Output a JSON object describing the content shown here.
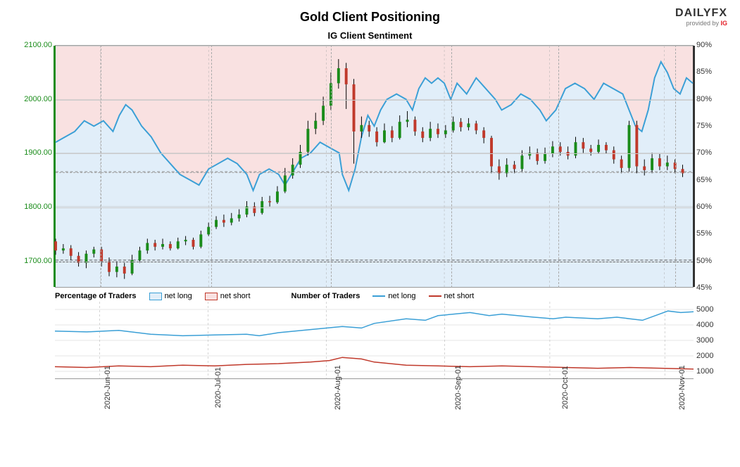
{
  "title": "Gold Client Positioning",
  "subtitle": "IG Client Sentiment",
  "logo": {
    "main": "DAILYFX",
    "sub_prefix": "provided by ",
    "sub_brand": "IG"
  },
  "main_chart": {
    "type": "candlestick-with-line",
    "background_upper": "#f9e1e1",
    "background_lower": "#e1eef9",
    "left_axis": {
      "color": "#1a8c1a",
      "min": 1650,
      "max": 2100,
      "ticks": [
        1700.0,
        1800.0,
        1900.0,
        2000.0,
        2100.0
      ],
      "labels": [
        "1700.00",
        "1800.00",
        "1900.00",
        "2000.00",
        "2100.00"
      ]
    },
    "right_axis": {
      "color": "#333",
      "min": 45,
      "max": 90,
      "ticks": [
        45,
        50,
        55,
        60,
        65,
        70,
        75,
        80,
        85,
        90
      ],
      "labels": [
        "45%",
        "50%",
        "55%",
        "60%",
        "65%",
        "70%",
        "75%",
        "80%",
        "85%",
        "90%"
      ]
    },
    "ref_line_left": 1700.0,
    "ref_line_right_50": 50,
    "ref_line_right_cur": 1865,
    "x_dates": [
      "2020-Jun-01",
      "2020-Jul-01",
      "2020-Aug-01",
      "2020-Sep-01",
      "2020-Oct-01",
      "2020-Nov-01"
    ],
    "x_positions": [
      0.07,
      0.24,
      0.425,
      0.61,
      0.775,
      0.955
    ],
    "sentiment_color": "#3a9fd6",
    "sentiment": [
      [
        0.0,
        72
      ],
      [
        0.015,
        73
      ],
      [
        0.03,
        74
      ],
      [
        0.045,
        76
      ],
      [
        0.06,
        75
      ],
      [
        0.075,
        76
      ],
      [
        0.09,
        74
      ],
      [
        0.1,
        77
      ],
      [
        0.11,
        79
      ],
      [
        0.12,
        78
      ],
      [
        0.135,
        75
      ],
      [
        0.15,
        73
      ],
      [
        0.165,
        70
      ],
      [
        0.18,
        68
      ],
      [
        0.195,
        66
      ],
      [
        0.21,
        65
      ],
      [
        0.225,
        64
      ],
      [
        0.24,
        67
      ],
      [
        0.255,
        68
      ],
      [
        0.27,
        69
      ],
      [
        0.285,
        68
      ],
      [
        0.3,
        66
      ],
      [
        0.31,
        63
      ],
      [
        0.32,
        66
      ],
      [
        0.335,
        67
      ],
      [
        0.35,
        66
      ],
      [
        0.36,
        64
      ],
      [
        0.37,
        66
      ],
      [
        0.385,
        69
      ],
      [
        0.4,
        70
      ],
      [
        0.415,
        72
      ],
      [
        0.43,
        71
      ],
      [
        0.445,
        70
      ],
      [
        0.45,
        66
      ],
      [
        0.46,
        63
      ],
      [
        0.47,
        67
      ],
      [
        0.48,
        73
      ],
      [
        0.49,
        77
      ],
      [
        0.5,
        75
      ],
      [
        0.51,
        78
      ],
      [
        0.52,
        80
      ],
      [
        0.535,
        81
      ],
      [
        0.55,
        80
      ],
      [
        0.56,
        78
      ],
      [
        0.57,
        82
      ],
      [
        0.58,
        84
      ],
      [
        0.59,
        83
      ],
      [
        0.6,
        84
      ],
      [
        0.61,
        83
      ],
      [
        0.62,
        80
      ],
      [
        0.63,
        83
      ],
      [
        0.645,
        81
      ],
      [
        0.66,
        84
      ],
      [
        0.675,
        82
      ],
      [
        0.69,
        80
      ],
      [
        0.7,
        78
      ],
      [
        0.715,
        79
      ],
      [
        0.73,
        81
      ],
      [
        0.745,
        80
      ],
      [
        0.76,
        78
      ],
      [
        0.77,
        76
      ],
      [
        0.785,
        78
      ],
      [
        0.8,
        82
      ],
      [
        0.815,
        83
      ],
      [
        0.83,
        82
      ],
      [
        0.845,
        80
      ],
      [
        0.86,
        83
      ],
      [
        0.875,
        82
      ],
      [
        0.89,
        81
      ],
      [
        0.9,
        78
      ],
      [
        0.91,
        75
      ],
      [
        0.92,
        74
      ],
      [
        0.93,
        78
      ],
      [
        0.94,
        84
      ],
      [
        0.95,
        87
      ],
      [
        0.96,
        85
      ],
      [
        0.97,
        82
      ],
      [
        0.98,
        81
      ],
      [
        0.99,
        84
      ],
      [
        1.0,
        83
      ]
    ],
    "candle_up_color": "#1a8c1a",
    "candle_down_color": "#c0392b",
    "candle_width": 4,
    "candles": [
      [
        0.0,
        1735,
        1718,
        1740,
        1710
      ],
      [
        0.012,
        1718,
        1722,
        1730,
        1712
      ],
      [
        0.024,
        1722,
        1708,
        1728,
        1700
      ],
      [
        0.036,
        1708,
        1695,
        1715,
        1688
      ],
      [
        0.048,
        1695,
        1712,
        1718,
        1685
      ],
      [
        0.06,
        1712,
        1720,
        1725,
        1705
      ],
      [
        0.072,
        1720,
        1698,
        1725,
        1688
      ],
      [
        0.084,
        1698,
        1678,
        1705,
        1670
      ],
      [
        0.096,
        1678,
        1688,
        1698,
        1668
      ],
      [
        0.108,
        1688,
        1675,
        1695,
        1665
      ],
      [
        0.12,
        1675,
        1700,
        1710,
        1672
      ],
      [
        0.132,
        1700,
        1718,
        1725,
        1695
      ],
      [
        0.144,
        1718,
        1732,
        1740,
        1712
      ],
      [
        0.156,
        1732,
        1725,
        1738,
        1718
      ],
      [
        0.168,
        1725,
        1730,
        1740,
        1720
      ],
      [
        0.18,
        1730,
        1722,
        1735,
        1718
      ],
      [
        0.192,
        1722,
        1735,
        1742,
        1720
      ],
      [
        0.204,
        1735,
        1738,
        1745,
        1728
      ],
      [
        0.216,
        1738,
        1725,
        1742,
        1720
      ],
      [
        0.228,
        1725,
        1748,
        1755,
        1722
      ],
      [
        0.24,
        1748,
        1762,
        1770,
        1745
      ],
      [
        0.252,
        1762,
        1775,
        1782,
        1758
      ],
      [
        0.264,
        1775,
        1770,
        1785,
        1762
      ],
      [
        0.276,
        1770,
        1778,
        1788,
        1765
      ],
      [
        0.288,
        1778,
        1785,
        1795,
        1772
      ],
      [
        0.3,
        1785,
        1800,
        1810,
        1780
      ],
      [
        0.312,
        1800,
        1788,
        1808,
        1782
      ],
      [
        0.324,
        1788,
        1810,
        1818,
        1785
      ],
      [
        0.336,
        1810,
        1808,
        1820,
        1800
      ],
      [
        0.348,
        1808,
        1828,
        1838,
        1805
      ],
      [
        0.36,
        1828,
        1858,
        1872,
        1825
      ],
      [
        0.372,
        1858,
        1878,
        1890,
        1852
      ],
      [
        0.384,
        1878,
        1902,
        1915,
        1872
      ],
      [
        0.396,
        1902,
        1945,
        1960,
        1895
      ],
      [
        0.408,
        1945,
        1960,
        1975,
        1935
      ],
      [
        0.42,
        1960,
        1988,
        2005,
        1952
      ],
      [
        0.432,
        1988,
        2030,
        2050,
        1980
      ],
      [
        0.444,
        2030,
        2058,
        2075,
        2020
      ],
      [
        0.456,
        2058,
        2028,
        2068,
        1982
      ],
      [
        0.468,
        2028,
        1940,
        2038,
        1880
      ],
      [
        0.48,
        1940,
        1952,
        1968,
        1928
      ],
      [
        0.492,
        1952,
        1940,
        1960,
        1930
      ],
      [
        0.504,
        1940,
        1920,
        1948,
        1912
      ],
      [
        0.516,
        1920,
        1942,
        1955,
        1918
      ],
      [
        0.528,
        1942,
        1928,
        1950,
        1920
      ],
      [
        0.54,
        1928,
        1958,
        1970,
        1925
      ],
      [
        0.552,
        1958,
        1962,
        1978,
        1948
      ],
      [
        0.564,
        1962,
        1940,
        1968,
        1932
      ],
      [
        0.576,
        1940,
        1928,
        1948,
        1920
      ],
      [
        0.588,
        1928,
        1945,
        1958,
        1922
      ],
      [
        0.6,
        1945,
        1935,
        1955,
        1928
      ],
      [
        0.612,
        1935,
        1942,
        1952,
        1928
      ],
      [
        0.624,
        1942,
        1958,
        1968,
        1938
      ],
      [
        0.636,
        1958,
        1948,
        1965,
        1940
      ],
      [
        0.648,
        1948,
        1955,
        1965,
        1942
      ],
      [
        0.66,
        1955,
        1942,
        1960,
        1935
      ],
      [
        0.672,
        1942,
        1928,
        1948,
        1918
      ],
      [
        0.684,
        1928,
        1875,
        1932,
        1862
      ],
      [
        0.696,
        1875,
        1862,
        1888,
        1850
      ],
      [
        0.708,
        1862,
        1878,
        1890,
        1855
      ],
      [
        0.72,
        1878,
        1870,
        1885,
        1862
      ],
      [
        0.732,
        1870,
        1895,
        1905,
        1865
      ],
      [
        0.744,
        1895,
        1900,
        1912,
        1888
      ],
      [
        0.756,
        1900,
        1885,
        1908,
        1878
      ],
      [
        0.768,
        1885,
        1898,
        1910,
        1880
      ],
      [
        0.78,
        1898,
        1912,
        1922,
        1892
      ],
      [
        0.792,
        1912,
        1902,
        1920,
        1895
      ],
      [
        0.804,
        1902,
        1895,
        1912,
        1888
      ],
      [
        0.816,
        1895,
        1920,
        1930,
        1890
      ],
      [
        0.828,
        1920,
        1908,
        1928,
        1900
      ],
      [
        0.84,
        1908,
        1902,
        1915,
        1895
      ],
      [
        0.852,
        1902,
        1915,
        1925,
        1898
      ],
      [
        0.864,
        1915,
        1905,
        1920,
        1898
      ],
      [
        0.876,
        1905,
        1888,
        1912,
        1880
      ],
      [
        0.888,
        1888,
        1872,
        1895,
        1862
      ],
      [
        0.9,
        1872,
        1952,
        1960,
        1865
      ],
      [
        0.912,
        1952,
        1875,
        1960,
        1862
      ],
      [
        0.924,
        1875,
        1868,
        1888,
        1858
      ],
      [
        0.936,
        1868,
        1890,
        1900,
        1862
      ],
      [
        0.948,
        1890,
        1875,
        1898,
        1868
      ],
      [
        0.96,
        1875,
        1882,
        1895,
        1868
      ],
      [
        0.972,
        1882,
        1870,
        1888,
        1862
      ],
      [
        0.984,
        1870,
        1862,
        1878,
        1855
      ]
    ]
  },
  "legend": {
    "pct_label": "Percentage of Traders",
    "net_long": "net long",
    "net_short": "net short",
    "num_label": "Number of Traders",
    "long_box_fill": "#e1eef9",
    "long_box_border": "#3a9fd6",
    "short_box_fill": "#f9e1e1",
    "short_box_border": "#c0392b",
    "long_line": "#3a9fd6",
    "short_line": "#c0392b"
  },
  "lower_chart": {
    "type": "line",
    "right_axis": {
      "min": 500,
      "max": 5500,
      "ticks": [
        1000,
        2000,
        3000,
        4000,
        5000
      ],
      "labels": [
        "1000",
        "2000",
        "3000",
        "4000",
        "5000"
      ]
    },
    "netlong_color": "#3a9fd6",
    "netshort_color": "#c0392b",
    "netlong": [
      [
        0.0,
        3600
      ],
      [
        0.05,
        3550
      ],
      [
        0.1,
        3650
      ],
      [
        0.15,
        3400
      ],
      [
        0.2,
        3300
      ],
      [
        0.25,
        3350
      ],
      [
        0.3,
        3400
      ],
      [
        0.32,
        3300
      ],
      [
        0.35,
        3500
      ],
      [
        0.4,
        3700
      ],
      [
        0.45,
        3900
      ],
      [
        0.48,
        3800
      ],
      [
        0.5,
        4100
      ],
      [
        0.55,
        4400
      ],
      [
        0.58,
        4300
      ],
      [
        0.6,
        4600
      ],
      [
        0.65,
        4800
      ],
      [
        0.68,
        4600
      ],
      [
        0.7,
        4700
      ],
      [
        0.75,
        4500
      ],
      [
        0.78,
        4400
      ],
      [
        0.8,
        4500
      ],
      [
        0.85,
        4400
      ],
      [
        0.88,
        4500
      ],
      [
        0.9,
        4400
      ],
      [
        0.92,
        4300
      ],
      [
        0.94,
        4600
      ],
      [
        0.96,
        4900
      ],
      [
        0.98,
        4800
      ],
      [
        1.0,
        4850
      ]
    ],
    "netshort": [
      [
        0.0,
        1300
      ],
      [
        0.05,
        1250
      ],
      [
        0.1,
        1350
      ],
      [
        0.15,
        1300
      ],
      [
        0.2,
        1400
      ],
      [
        0.25,
        1350
      ],
      [
        0.3,
        1450
      ],
      [
        0.35,
        1500
      ],
      [
        0.4,
        1600
      ],
      [
        0.43,
        1700
      ],
      [
        0.45,
        1900
      ],
      [
        0.48,
        1800
      ],
      [
        0.5,
        1600
      ],
      [
        0.55,
        1400
      ],
      [
        0.6,
        1350
      ],
      [
        0.65,
        1300
      ],
      [
        0.7,
        1350
      ],
      [
        0.75,
        1300
      ],
      [
        0.8,
        1250
      ],
      [
        0.85,
        1200
      ],
      [
        0.9,
        1250
      ],
      [
        0.95,
        1200
      ],
      [
        1.0,
        1150
      ]
    ]
  }
}
